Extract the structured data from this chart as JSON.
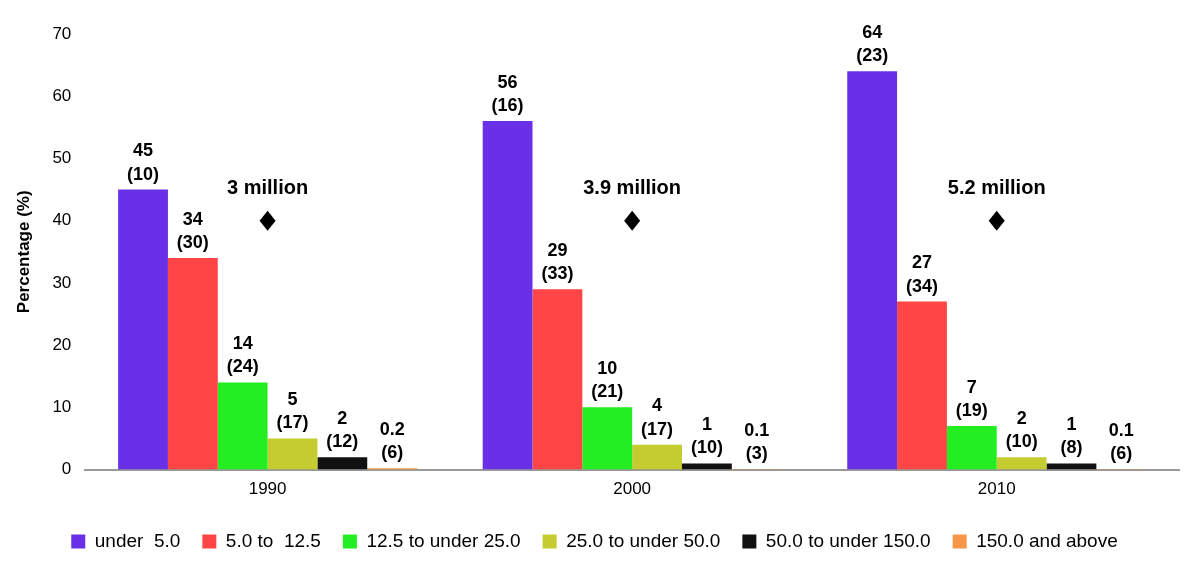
{
  "chart_data": {
    "type": "bar",
    "ylabel": "Percentage (%)",
    "categories": [
      "1990",
      "2000",
      "2010"
    ],
    "series": [
      {
        "name": "under  5.0",
        "color": "#6a30e8",
        "values": [
          45,
          56,
          64
        ],
        "value_labels": [
          "45\n(10)",
          "56\n(16)",
          "64\n(23)"
        ]
      },
      {
        "name": "5.0 to  12.5",
        "color": "#ff4545",
        "values": [
          34,
          29,
          27
        ],
        "value_labels": [
          "34\n(30)",
          "29\n(33)",
          "27\n(34)"
        ]
      },
      {
        "name": "12.5 to under 25.0",
        "color": "#22ee22",
        "values": [
          14,
          10,
          7
        ],
        "value_labels": [
          "14\n(24)",
          "10\n(21)",
          "7\n(19)"
        ]
      },
      {
        "name": "25.0 to under 50.0",
        "color": "#c4cc30",
        "values": [
          5,
          4,
          2
        ],
        "value_labels": [
          "5\n(17)",
          "4\n(17)",
          "2\n(10)"
        ]
      },
      {
        "name": "50.0 to under 150.0",
        "color": "#111111",
        "values": [
          2,
          1,
          1
        ],
        "value_labels": [
          "2\n(12)",
          "1\n(10)",
          "1\n(8)"
        ]
      },
      {
        "name": "150.0 and above",
        "color": "#f79646",
        "values": [
          0.2,
          0.1,
          0.1
        ],
        "value_labels": [
          "0.2\n(6)",
          "0.1\n(3)",
          "0.1\n(6)"
        ]
      }
    ],
    "annotations": [
      {
        "text": "3 million",
        "x": "1990",
        "y": 40
      },
      {
        "text": "3.9 million",
        "x": "2000",
        "y": 40
      },
      {
        "text": "5.2 million",
        "x": "2010",
        "y": 40
      }
    ],
    "ylim": [
      0,
      70
    ],
    "yticks": [
      0,
      10,
      20,
      30,
      40,
      50,
      60,
      70
    ],
    "grid": false,
    "legend": "bottom"
  }
}
